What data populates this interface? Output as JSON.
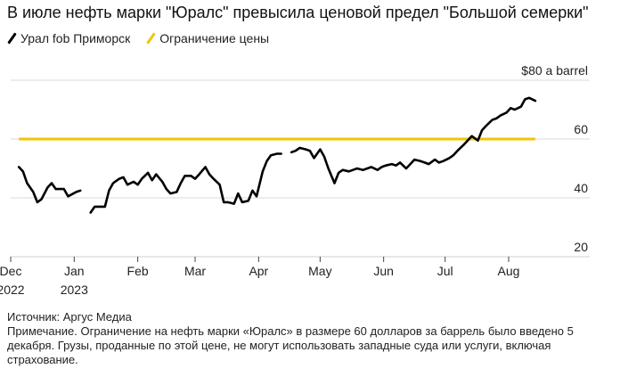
{
  "title": "В июле нефть марки \"Юралс\" превысила ценовой предел \"Большой семерки\"",
  "legend": [
    {
      "label": "Урал fob Приморск",
      "color": "#000000"
    },
    {
      "label": "Ограничение цены",
      "color": "#f2c500"
    }
  ],
  "colors": {
    "series": "#000000",
    "cap": "#f2c500",
    "grid": "#d9d9d9",
    "text": "#222222"
  },
  "notes": {
    "source": "Источник: Аргус Медиа",
    "note": "Примечание. Ограничение на нефть марки «Юралс» в размере 60 долларов за баррель было введено 5 декабря. Грузы, проданные по этой цене, не могут использовать западные суда или услуги, включая страхование."
  },
  "chart_data": {
    "type": "line",
    "y_unit_label": "$80 a barrel",
    "ylim": [
      20,
      80
    ],
    "yticks": [
      {
        "value": 20,
        "label": "20"
      },
      {
        "value": 40,
        "label": "40"
      },
      {
        "value": 60,
        "label": "60"
      },
      {
        "value": 80,
        "label": "$80 a barrel"
      }
    ],
    "xlim": [
      "2022-12-01",
      "2023-08-31"
    ],
    "xticks": [
      {
        "date": "2022-12-01",
        "label": "Dec",
        "sublabel": "2022"
      },
      {
        "date": "2023-01-01",
        "label": "Jan",
        "sublabel": "2023"
      },
      {
        "date": "2023-02-01",
        "label": "Feb",
        "sublabel": ""
      },
      {
        "date": "2023-03-01",
        "label": "Mar",
        "sublabel": ""
      },
      {
        "date": "2023-04-01",
        "label": "Apr",
        "sublabel": ""
      },
      {
        "date": "2023-05-01",
        "label": "May",
        "sublabel": ""
      },
      {
        "date": "2023-06-01",
        "label": "Jun",
        "sublabel": ""
      },
      {
        "date": "2023-07-01",
        "label": "Jul",
        "sublabel": ""
      },
      {
        "date": "2023-08-01",
        "label": "Aug",
        "sublabel": ""
      }
    ],
    "grid": true,
    "series": [
      {
        "name": "Урал fob Приморск",
        "points": [
          [
            "2022-12-05",
            50.5
          ],
          [
            "2022-12-07",
            49.0
          ],
          [
            "2022-12-09",
            45.0
          ],
          [
            "2022-12-12",
            42.0
          ],
          [
            "2022-12-14",
            38.5
          ],
          [
            "2022-12-16",
            39.5
          ],
          [
            "2022-12-19",
            43.5
          ],
          [
            "2022-12-21",
            45.0
          ],
          [
            "2022-12-23",
            43.0
          ],
          [
            "2022-12-27",
            43.0
          ],
          [
            "2022-12-29",
            40.5
          ],
          [
            "2023-01-02",
            42.0
          ],
          [
            "2023-01-04",
            42.5
          ],
          [
            "2023-01-06",
            null
          ],
          [
            "2023-01-09",
            35.0
          ],
          [
            "2023-01-11",
            37.0
          ],
          [
            "2023-01-13",
            37.0
          ],
          [
            "2023-01-16",
            37.0
          ],
          [
            "2023-01-18",
            42.5
          ],
          [
            "2023-01-20",
            45.0
          ],
          [
            "2023-01-23",
            46.5
          ],
          [
            "2023-01-25",
            47.0
          ],
          [
            "2023-01-27",
            44.5
          ],
          [
            "2023-01-30",
            45.5
          ],
          [
            "2023-02-01",
            44.5
          ],
          [
            "2023-02-03",
            46.5
          ],
          [
            "2023-02-06",
            48.5
          ],
          [
            "2023-02-08",
            46.0
          ],
          [
            "2023-02-10",
            48.0
          ],
          [
            "2023-02-13",
            45.5
          ],
          [
            "2023-02-15",
            43.0
          ],
          [
            "2023-02-17",
            41.5
          ],
          [
            "2023-02-20",
            42.0
          ],
          [
            "2023-02-22",
            45.0
          ],
          [
            "2023-02-24",
            47.5
          ],
          [
            "2023-02-27",
            47.5
          ],
          [
            "2023-03-01",
            46.5
          ],
          [
            "2023-03-03",
            48.0
          ],
          [
            "2023-03-06",
            50.5
          ],
          [
            "2023-03-08",
            48.0
          ],
          [
            "2023-03-10",
            46.5
          ],
          [
            "2023-03-13",
            44.5
          ],
          [
            "2023-03-15",
            38.5
          ],
          [
            "2023-03-17",
            38.5
          ],
          [
            "2023-03-20",
            38.0
          ],
          [
            "2023-03-22",
            41.5
          ],
          [
            "2023-03-24",
            38.5
          ],
          [
            "2023-03-27",
            39.0
          ],
          [
            "2023-03-29",
            42.5
          ],
          [
            "2023-03-31",
            40.5
          ],
          [
            "2023-04-03",
            49.0
          ],
          [
            "2023-04-05",
            52.5
          ],
          [
            "2023-04-07",
            54.5
          ],
          [
            "2023-04-10",
            55.0
          ],
          [
            "2023-04-12",
            55.0
          ],
          [
            "2023-04-14",
            null
          ],
          [
            "2023-04-17",
            55.5
          ],
          [
            "2023-04-19",
            56.0
          ],
          [
            "2023-04-21",
            57.0
          ],
          [
            "2023-04-24",
            56.5
          ],
          [
            "2023-04-26",
            56.0
          ],
          [
            "2023-04-28",
            53.5
          ],
          [
            "2023-05-01",
            56.5
          ],
          [
            "2023-05-03",
            54.0
          ],
          [
            "2023-05-05",
            50.0
          ],
          [
            "2023-05-08",
            45.0
          ],
          [
            "2023-05-10",
            48.5
          ],
          [
            "2023-05-12",
            49.5
          ],
          [
            "2023-05-15",
            49.0
          ],
          [
            "2023-05-17",
            49.5
          ],
          [
            "2023-05-19",
            50.0
          ],
          [
            "2023-05-22",
            49.5
          ],
          [
            "2023-05-24",
            50.0
          ],
          [
            "2023-05-26",
            50.5
          ],
          [
            "2023-05-29",
            49.5
          ],
          [
            "2023-05-31",
            50.5
          ],
          [
            "2023-06-02",
            51.0
          ],
          [
            "2023-06-05",
            51.5
          ],
          [
            "2023-06-07",
            51.0
          ],
          [
            "2023-06-09",
            52.0
          ],
          [
            "2023-06-12",
            50.0
          ],
          [
            "2023-06-14",
            51.5
          ],
          [
            "2023-06-16",
            53.0
          ],
          [
            "2023-06-19",
            52.5
          ],
          [
            "2023-06-21",
            52.0
          ],
          [
            "2023-06-23",
            51.5
          ],
          [
            "2023-06-26",
            53.0
          ],
          [
            "2023-06-28",
            52.0
          ],
          [
            "2023-06-30",
            52.5
          ],
          [
            "2023-07-03",
            53.5
          ],
          [
            "2023-07-05",
            54.5
          ],
          [
            "2023-07-07",
            56.0
          ],
          [
            "2023-07-10",
            58.0
          ],
          [
            "2023-07-12",
            59.5
          ],
          [
            "2023-07-14",
            61.0
          ],
          [
            "2023-07-17",
            59.5
          ],
          [
            "2023-07-19",
            63.0
          ],
          [
            "2023-07-21",
            64.5
          ],
          [
            "2023-07-24",
            66.5
          ],
          [
            "2023-07-26",
            67.0
          ],
          [
            "2023-07-28",
            68.0
          ],
          [
            "2023-07-31",
            69.0
          ],
          [
            "2023-08-02",
            70.5
          ],
          [
            "2023-08-04",
            70.0
          ],
          [
            "2023-08-07",
            71.0
          ],
          [
            "2023-08-09",
            73.5
          ],
          [
            "2023-08-11",
            74.0
          ],
          [
            "2023-08-14",
            73.0
          ]
        ]
      },
      {
        "name": "Ограничение цены",
        "points": [
          [
            "2022-12-05",
            60
          ],
          [
            "2023-08-14",
            60
          ]
        ]
      }
    ]
  }
}
